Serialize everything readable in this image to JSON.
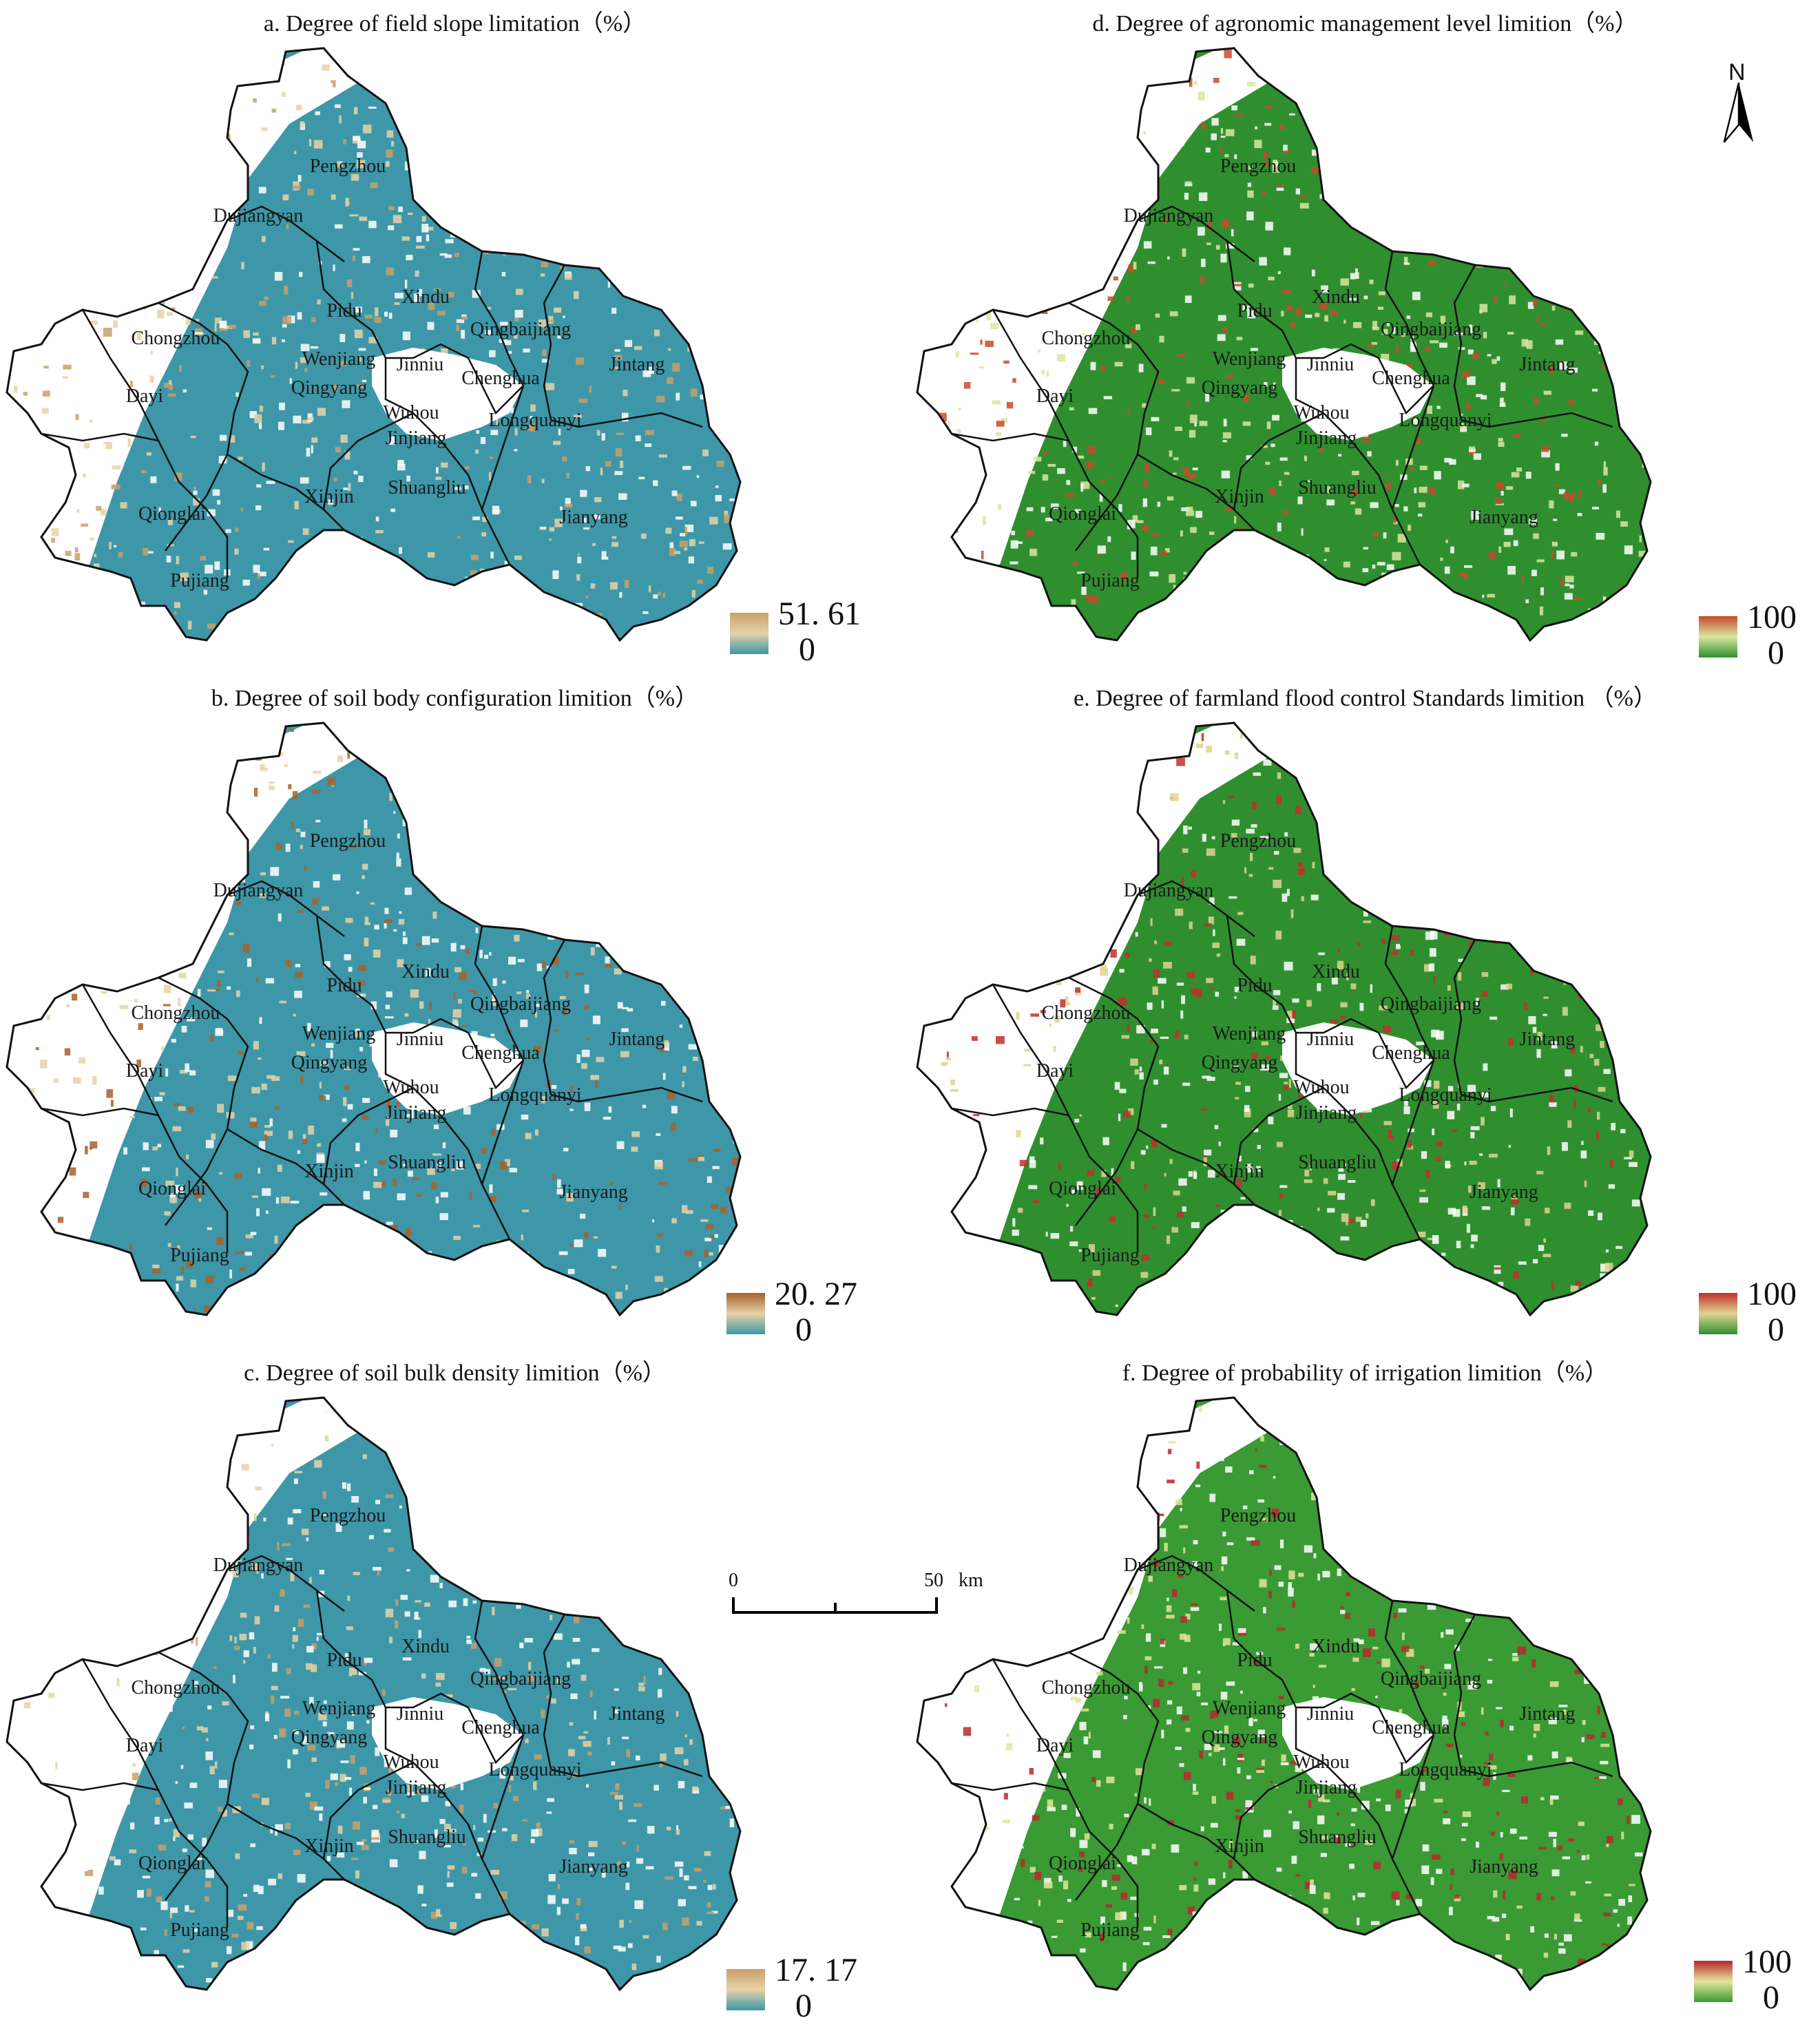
{
  "panels": [
    {
      "id": "a",
      "title": "a. Degree of field slope limitation（%）",
      "legend_max": "51. 61",
      "legend_min": "0",
      "base_color": "#3d97a8",
      "accent_color": "#c9a06a",
      "light_color": "#e6d2a8"
    },
    {
      "id": "d",
      "title": "d. Degree of agronomic management level limition（%）",
      "legend_max": "100",
      "legend_min": "0",
      "base_color": "#2f8f2f",
      "accent_color": "#c84a2a",
      "light_color": "#d9e6a0"
    },
    {
      "id": "b",
      "title": "b. Degree of soil body configuration limition（%）",
      "legend_max": "20. 27",
      "legend_min": "0",
      "base_color": "#3d97a8",
      "accent_color": "#a8602a",
      "light_color": "#e6d2a8"
    },
    {
      "id": "e",
      "title": "e. Degree of farmland flood control Standards limition （%）",
      "legend_max": "100",
      "legend_min": "0",
      "base_color": "#2f8f2f",
      "accent_color": "#c0302a",
      "light_color": "#e0d490"
    },
    {
      "id": "c",
      "title": "c. Degree of soil bulk density limition（%）",
      "legend_max": "17. 17",
      "legend_min": "0",
      "base_color": "#3d97a8",
      "accent_color": "#c9a06a",
      "light_color": "#e6d2a8"
    },
    {
      "id": "f",
      "title": "f. Degree of probability of irrigation limition（%）",
      "legend_max": "100",
      "legend_min": "0",
      "base_color": "#3a9a34",
      "accent_color": "#b8282a",
      "light_color": "#e4e49a"
    }
  ],
  "districts": [
    "Pengzhou",
    "Dujiangyan",
    "Xindu",
    "Pidu",
    "Qingbaijiang",
    "Chongzhou",
    "Wenjiang",
    "Jinniu",
    "Jintang",
    "Chenghua",
    "Qingyang",
    "Dayi",
    "Wuhou",
    "Longquanyi",
    "Jinjiang",
    "Shuangliu",
    "Xinjin",
    "Qionglai",
    "Jianyang",
    "Pujiang"
  ],
  "north_label": "N",
  "scale": {
    "start": "0",
    "end": "50",
    "unit": "km"
  }
}
